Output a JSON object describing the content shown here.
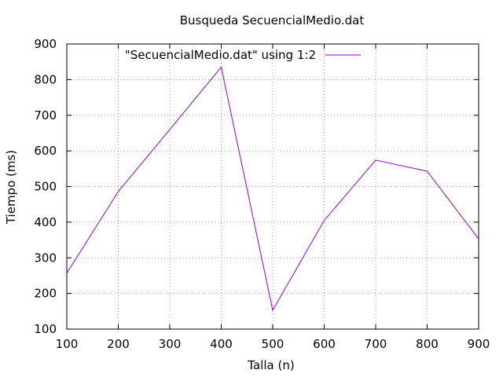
{
  "chart_data": {
    "type": "line",
    "title": "Busqueda SecuencialMedio.dat",
    "xlabel": "Talla (n)",
    "ylabel": "Tiempo (ms)",
    "xlim": [
      100,
      900
    ],
    "ylim": [
      100,
      900
    ],
    "xticks": [
      100,
      200,
      300,
      400,
      500,
      600,
      700,
      800,
      900
    ],
    "yticks": [
      100,
      200,
      300,
      400,
      500,
      600,
      700,
      800,
      900
    ],
    "grid": true,
    "legend_position": "top",
    "series": [
      {
        "name": "\"SecuencialMedio.dat\" using 1:2",
        "color": "#9400d3",
        "x": [
          100,
          200,
          300,
          400,
          500,
          600,
          700,
          800,
          900
        ],
        "y": [
          257,
          486,
          660,
          835,
          153,
          405,
          574,
          543,
          353
        ]
      }
    ]
  }
}
